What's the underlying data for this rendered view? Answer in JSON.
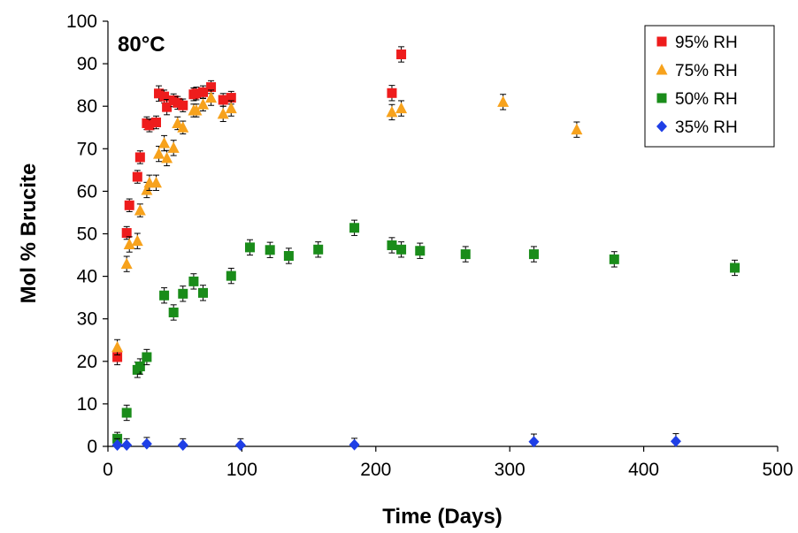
{
  "chart_data": {
    "type": "scatter",
    "title": "",
    "annotation": "80°C",
    "xlabel": "Time (Days)",
    "ylabel": "Mol % Brucite",
    "xlim": [
      0,
      500
    ],
    "ylim": [
      0,
      100
    ],
    "xticks": [
      0,
      100,
      200,
      300,
      400,
      500
    ],
    "yticks": [
      0,
      10,
      20,
      30,
      40,
      50,
      60,
      70,
      80,
      90,
      100
    ],
    "grid": false,
    "legend_position": "top-right",
    "error_bars": true,
    "series": [
      {
        "name": "95% RH",
        "color": "#ee1c1c",
        "marker": "square",
        "points": [
          [
            7,
            21.0,
            1.8
          ],
          [
            14,
            50.2,
            1.5
          ],
          [
            16,
            56.7,
            1.5
          ],
          [
            22,
            63.4,
            1.5
          ],
          [
            24,
            68.0,
            1.5
          ],
          [
            29,
            76.0,
            1.5
          ],
          [
            31,
            75.5,
            1.5
          ],
          [
            36,
            76.2,
            1.5
          ],
          [
            38,
            83.0,
            1.8
          ],
          [
            42,
            82.3,
            1.5
          ],
          [
            44,
            79.8,
            1.8
          ],
          [
            49,
            81.4,
            1.5
          ],
          [
            52,
            80.8,
            1.5
          ],
          [
            56,
            80.2,
            1.5
          ],
          [
            64,
            82.8,
            1.5
          ],
          [
            66,
            83.0,
            1.5
          ],
          [
            71,
            83.3,
            1.5
          ],
          [
            77,
            84.5,
            1.5
          ],
          [
            86,
            81.5,
            1.5
          ],
          [
            92,
            82.0,
            1.5
          ],
          [
            212,
            83.1,
            1.8
          ],
          [
            219,
            92.2,
            1.8
          ]
        ]
      },
      {
        "name": "75% RH",
        "color": "#f7a21c",
        "marker": "triangle",
        "points": [
          [
            7,
            23.3,
            1.8
          ],
          [
            14,
            42.9,
            1.8
          ],
          [
            16,
            47.5,
            1.8
          ],
          [
            22,
            48.3,
            1.8
          ],
          [
            24,
            55.5,
            1.5
          ],
          [
            29,
            60.3,
            1.8
          ],
          [
            31,
            62.0,
            1.8
          ],
          [
            36,
            62.0,
            1.8
          ],
          [
            38,
            68.8,
            1.8
          ],
          [
            42,
            71.3,
            1.8
          ],
          [
            44,
            67.8,
            1.8
          ],
          [
            49,
            70.2,
            1.8
          ],
          [
            52,
            76.0,
            1.5
          ],
          [
            56,
            75.0,
            1.5
          ],
          [
            64,
            79.0,
            1.5
          ],
          [
            66,
            79.0,
            1.5
          ],
          [
            71,
            80.4,
            1.5
          ],
          [
            77,
            82.0,
            1.8
          ],
          [
            86,
            78.2,
            1.8
          ],
          [
            92,
            79.5,
            1.8
          ],
          [
            212,
            78.6,
            1.8
          ],
          [
            219,
            79.5,
            1.8
          ],
          [
            295,
            81.0,
            1.8
          ],
          [
            350,
            74.5,
            1.8
          ]
        ]
      },
      {
        "name": "50% RH",
        "color": "#1a8c1a",
        "marker": "square",
        "points": [
          [
            7,
            1.8,
            1.5
          ],
          [
            14,
            7.9,
            1.8
          ],
          [
            22,
            18.0,
            1.8
          ],
          [
            24,
            18.8,
            1.8
          ],
          [
            29,
            21.0,
            1.8
          ],
          [
            42,
            35.5,
            1.8
          ],
          [
            49,
            31.5,
            1.8
          ],
          [
            56,
            35.9,
            1.8
          ],
          [
            64,
            38.8,
            1.8
          ],
          [
            71,
            36.1,
            1.8
          ],
          [
            92,
            40.1,
            1.8
          ],
          [
            106,
            46.8,
            1.8
          ],
          [
            121,
            46.2,
            1.8
          ],
          [
            135,
            44.8,
            1.8
          ],
          [
            157,
            46.3,
            1.8
          ],
          [
            184,
            51.4,
            1.8
          ],
          [
            212,
            47.3,
            1.8
          ],
          [
            219,
            46.3,
            1.8
          ],
          [
            233,
            46.0,
            1.8
          ],
          [
            267,
            45.2,
            1.8
          ],
          [
            318,
            45.2,
            1.8
          ],
          [
            378,
            44.0,
            1.8
          ],
          [
            468,
            42.0,
            1.8
          ]
        ]
      },
      {
        "name": "35% RH",
        "color": "#1f3fe6",
        "marker": "diamond",
        "points": [
          [
            7,
            0.3,
            1.5
          ],
          [
            14,
            0.3,
            1.5
          ],
          [
            29,
            0.6,
            1.5
          ],
          [
            56,
            0.3,
            1.5
          ],
          [
            99,
            0.3,
            1.5
          ],
          [
            184,
            0.4,
            1.5
          ],
          [
            318,
            1.1,
            1.8
          ],
          [
            424,
            1.2,
            1.8
          ]
        ]
      }
    ]
  }
}
